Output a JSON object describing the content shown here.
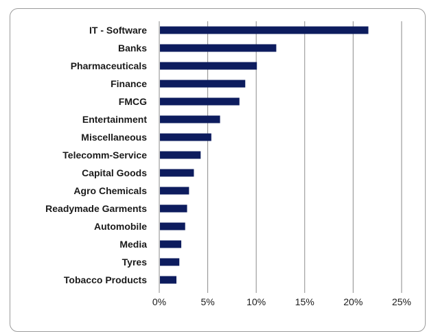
{
  "chart_data": {
    "type": "bar",
    "orientation": "horizontal",
    "title": "",
    "xlabel": "",
    "ylabel": "",
    "categories": [
      "IT - Software",
      "Banks",
      "Pharmaceuticals",
      "Finance",
      "FMCG",
      "Entertainment",
      "Miscellaneous",
      "Telecomm-Service",
      "Capital Goods",
      "Agro Chemicals",
      "Readymade Garments",
      "Automobile",
      "Media",
      "Tyres",
      "Tobacco Products"
    ],
    "values": [
      21.5,
      12.0,
      10.0,
      8.8,
      8.2,
      6.2,
      5.3,
      4.2,
      3.5,
      3.0,
      2.8,
      2.6,
      2.2,
      2.0,
      1.7
    ],
    "xlim": [
      0,
      25
    ],
    "xticks": [
      0,
      5,
      10,
      15,
      20,
      25
    ],
    "xtick_labels": [
      "0%",
      "5%",
      "10%",
      "15%",
      "20%",
      "25%"
    ],
    "grid": "vertical",
    "legend": "none",
    "colors": {
      "bar": "#0d1c5e",
      "grid": "#8a8a8a",
      "axis": "#8a8a8a"
    }
  }
}
